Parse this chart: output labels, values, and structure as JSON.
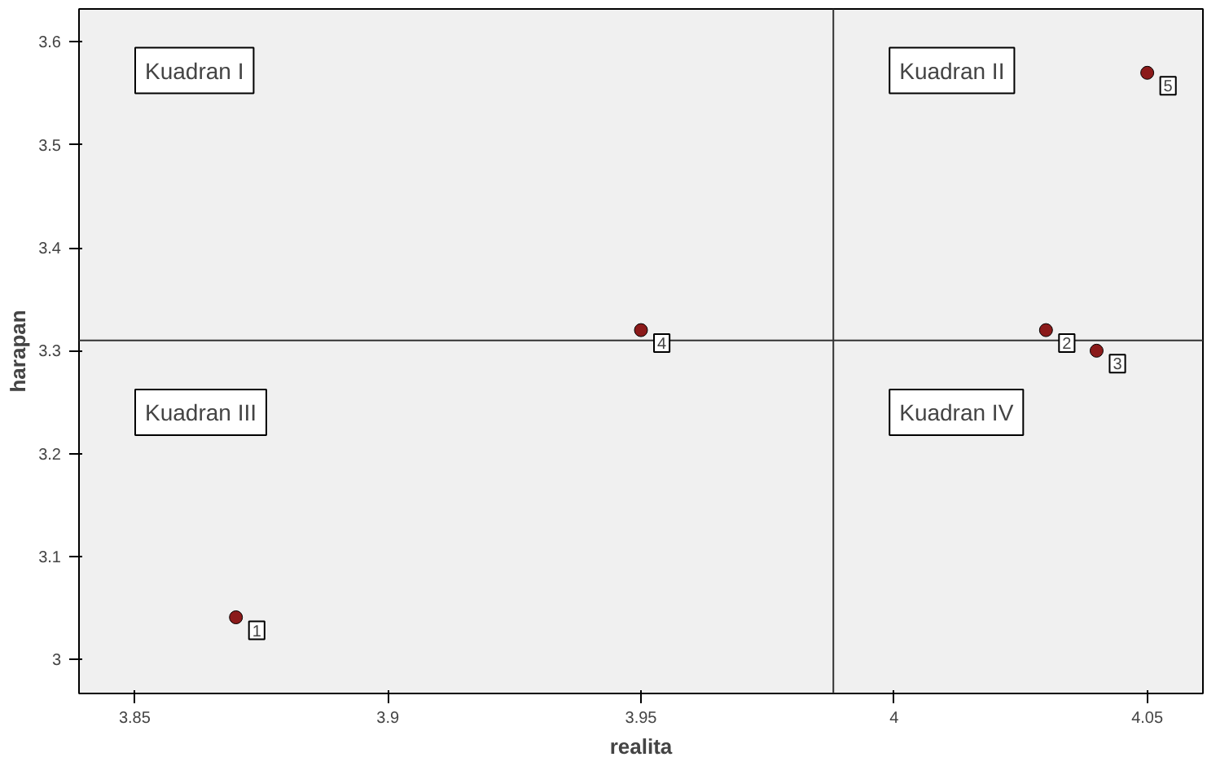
{
  "chart_data": {
    "type": "scatter",
    "xlabel": "realita",
    "ylabel": "harapan",
    "x": [
      3.87,
      4.03,
      4.04,
      3.95,
      4.05
    ],
    "series": [
      {
        "color": "#8b1a1a",
        "values": [
          3.041,
          3.32,
          3.3,
          3.32,
          3.57
        ]
      }
    ],
    "xlim": [
      3.839,
      4.061
    ],
    "ylim": [
      2.967,
      3.632
    ],
    "xticks": [
      3.85,
      3.9,
      3.95,
      4,
      4.05
    ],
    "yticks": [
      3,
      3.1,
      3.2,
      3.3,
      3.4,
      3.5,
      3.6
    ],
    "ref_lines": [
      {
        "axis": "x",
        "value": 3.988,
        "color": "#333333"
      },
      {
        "axis": "y",
        "value": 3.31,
        "color": "#333333"
      }
    ],
    "annotations": [
      {
        "text": "1",
        "x": 3.87,
        "y": 3.041
      },
      {
        "text": "2",
        "x": 4.03,
        "y": 3.32
      },
      {
        "text": "3",
        "x": 4.04,
        "y": 3.3
      },
      {
        "text": "4",
        "x": 3.95,
        "y": 3.32
      },
      {
        "text": "5",
        "x": 4.05,
        "y": 3.57
      },
      "Kuadran I",
      "Kuadran II",
      "Kuadran III",
      "Kuadran IV"
    ],
    "marker": "circle",
    "grid": false
  }
}
